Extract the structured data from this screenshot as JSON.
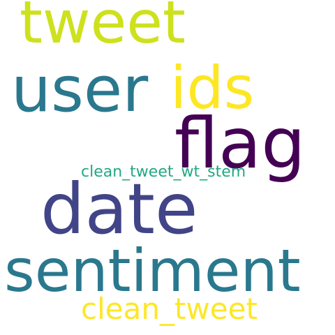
{
  "words": [
    {
      "id": "tweet",
      "text": "tweet",
      "color": "#cde11d"
    },
    {
      "id": "user",
      "text": "user",
      "color": "#2a788e"
    },
    {
      "id": "ids",
      "text": "ids",
      "color": "#fde725"
    },
    {
      "id": "flag",
      "text": "flag",
      "color": "#440154"
    },
    {
      "id": "clean_tweet_wt_stem",
      "text": "clean_tweet_wt_stem",
      "color": "#22a884"
    },
    {
      "id": "date",
      "text": "date",
      "color": "#414487"
    },
    {
      "id": "sentiment",
      "text": "sentiment",
      "color": "#2a788e"
    },
    {
      "id": "clean_tweet",
      "text": "clean_tweet",
      "color": "#fde725"
    }
  ]
}
